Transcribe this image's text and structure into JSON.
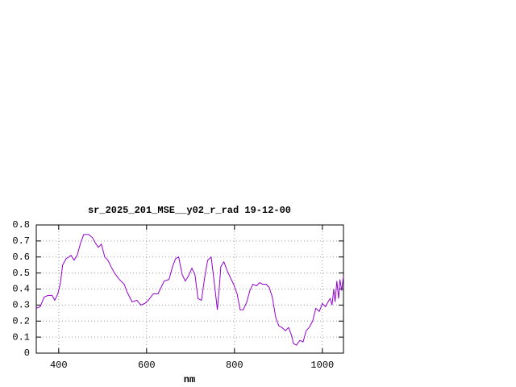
{
  "chart_data": {
    "type": "line",
    "title": "sr_2025_201_MSE__y02_r_rad 19-12-00",
    "x_label": "nm",
    "x": [
      349,
      358,
      367,
      376,
      385,
      391,
      398,
      404,
      409,
      417,
      428,
      435,
      442,
      450,
      457,
      468,
      477,
      483,
      490,
      497,
      505,
      512,
      519,
      527,
      538,
      549,
      556,
      567,
      578,
      587,
      596,
      604,
      615,
      626,
      633,
      640,
      651,
      659,
      666,
      673,
      681,
      688,
      695,
      703,
      710,
      717,
      725,
      732,
      739,
      747,
      754,
      761,
      765,
      769,
      776,
      784,
      791,
      798,
      806,
      813,
      820,
      828,
      835,
      842,
      850,
      857,
      864,
      872,
      879,
      886,
      894,
      901,
      908,
      916,
      923,
      930,
      934,
      941,
      949,
      956,
      963,
      970,
      978,
      985,
      993,
      1000,
      1007,
      1015,
      1018,
      1022,
      1026,
      1029,
      1033,
      1037,
      1040,
      1044,
      1048
    ],
    "series": [
      {
        "color": "#9400d3",
        "values": [
          0.28,
          0.29,
          0.35,
          0.36,
          0.36,
          0.33,
          0.37,
          0.44,
          0.55,
          0.59,
          0.61,
          0.58,
          0.61,
          0.69,
          0.74,
          0.74,
          0.72,
          0.69,
          0.66,
          0.68,
          0.6,
          0.58,
          0.54,
          0.5,
          0.46,
          0.43,
          0.38,
          0.32,
          0.33,
          0.3,
          0.31,
          0.33,
          0.37,
          0.37,
          0.41,
          0.45,
          0.46,
          0.54,
          0.59,
          0.6,
          0.49,
          0.45,
          0.48,
          0.53,
          0.49,
          0.34,
          0.33,
          0.47,
          0.58,
          0.6,
          0.44,
          0.27,
          0.39,
          0.54,
          0.57,
          0.51,
          0.47,
          0.43,
          0.37,
          0.27,
          0.27,
          0.32,
          0.39,
          0.43,
          0.42,
          0.44,
          0.43,
          0.43,
          0.41,
          0.35,
          0.22,
          0.17,
          0.16,
          0.14,
          0.16,
          0.11,
          0.06,
          0.05,
          0.08,
          0.07,
          0.14,
          0.16,
          0.2,
          0.28,
          0.26,
          0.31,
          0.29,
          0.33,
          0.34,
          0.3,
          0.4,
          0.32,
          0.45,
          0.34,
          0.46,
          0.39,
          0.48
        ]
      }
    ],
    "xlim": [
      349,
      1048
    ],
    "xticks": [
      400,
      600,
      800,
      1000
    ],
    "ylim": [
      0,
      0.8
    ],
    "yticks": [
      0,
      0.1,
      0.2,
      0.3,
      0.4,
      0.5,
      0.6,
      0.7,
      0.8
    ],
    "grid": true
  }
}
